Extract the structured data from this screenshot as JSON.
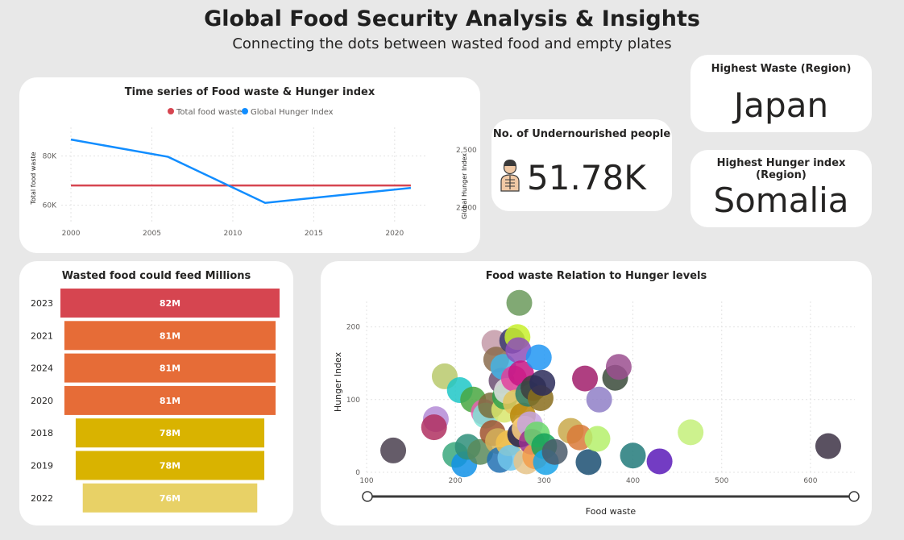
{
  "header": {
    "title": "Global Food Security Analysis & Insights",
    "subtitle": "Connecting the dots between wasted food and empty plates"
  },
  "kpis": {
    "highest_waste": {
      "label": "Highest Waste (Region)",
      "value": "Japan"
    },
    "highest_hunger": {
      "label": "Highest Hunger index (Region)",
      "value": "Somalia"
    },
    "undernourished": {
      "label": "No. of Undernourished people",
      "value": "51.78K",
      "icon": "person-skeleton-icon"
    }
  },
  "colors": {
    "food_waste": "#d64550",
    "hunger_index": "#118dff",
    "bar_2023": "#d64550",
    "bar_2021": "#e66c37",
    "bar_2018": "#d9b300",
    "bar_2022": "#e8d166"
  },
  "chart_data": [
    {
      "type": "line",
      "title": "Time series of Food waste & Hunger index",
      "legend": "top-center",
      "xlabel": "",
      "ylabel": "Total food waste",
      "y2label": "Global Hunger Index",
      "x_ticks": [
        2000,
        2005,
        2010,
        2015,
        2020
      ],
      "y_ticks": [
        {
          "value": 60000,
          "label": "60K"
        },
        {
          "value": 80000,
          "label": "80K"
        }
      ],
      "y2_ticks": [
        {
          "value": 2000,
          "label": "2,000"
        },
        {
          "value": 2500,
          "label": "2,500"
        }
      ],
      "xlim": [
        1999.4,
        2022
      ],
      "ylim": [
        53000,
        89000
      ],
      "y2lim": [
        1870,
        2640
      ],
      "series": [
        {
          "name": "Total food waste",
          "axis": "left",
          "x": [
            2000,
            2021
          ],
          "values": [
            68000,
            68000
          ]
        },
        {
          "name": "Global Hunger Index",
          "axis": "right",
          "x": [
            2000,
            2006,
            2012,
            2021
          ],
          "values": [
            2590,
            2440,
            2040,
            2170
          ]
        }
      ]
    },
    {
      "type": "bar",
      "orientation": "horizontal-funnel",
      "title": "Wasted food could feed Millions",
      "categories": [
        "2023",
        "2021",
        "2024",
        "2020",
        "2018",
        "2019",
        "2022"
      ],
      "values": [
        82,
        81,
        81,
        81,
        78,
        78,
        76
      ],
      "labels": [
        "82M",
        "81M",
        "81M",
        "81M",
        "78M",
        "78M",
        "76M"
      ]
    },
    {
      "type": "scatter",
      "title": "Food waste Relation to Hunger levels",
      "xlabel": "Food waste",
      "ylabel": "Hunger Index",
      "xlim": [
        100,
        650
      ],
      "ylim": [
        0,
        235
      ],
      "x_ticks": [
        100,
        200,
        300,
        400,
        500,
        600
      ],
      "y_ticks": [
        0,
        100,
        200
      ],
      "grid": true,
      "points": [
        {
          "x": 130,
          "y": 30,
          "c": "#4a3f4f"
        },
        {
          "x": 178,
          "y": 73,
          "c": "#b48bd6"
        },
        {
          "x": 176,
          "y": 62,
          "c": "#b03060"
        },
        {
          "x": 188,
          "y": 132,
          "c": "#b8c96c"
        },
        {
          "x": 205,
          "y": 113,
          "c": "#1fc7c7"
        },
        {
          "x": 200,
          "y": 24,
          "c": "#3aa87d"
        },
        {
          "x": 210,
          "y": 11,
          "c": "#1192e8"
        },
        {
          "x": 214,
          "y": 35,
          "c": "#2f8f7a"
        },
        {
          "x": 220,
          "y": 100,
          "c": "#49a741"
        },
        {
          "x": 228,
          "y": 28,
          "c": "#5a8a5a"
        },
        {
          "x": 232,
          "y": 83,
          "c": "#e85fb0"
        },
        {
          "x": 234,
          "y": 78,
          "c": "#7fe3d6"
        },
        {
          "x": 240,
          "y": 92,
          "c": "#7a6d3a"
        },
        {
          "x": 242,
          "y": 54,
          "c": "#a0522d"
        },
        {
          "x": 244,
          "y": 178,
          "c": "#c49aa8"
        },
        {
          "x": 246,
          "y": 155,
          "c": "#8b6c4e"
        },
        {
          "x": 248,
          "y": 43,
          "c": "#d4b15b"
        },
        {
          "x": 250,
          "y": 17,
          "c": "#2271b3"
        },
        {
          "x": 252,
          "y": 126,
          "c": "#6b4e71"
        },
        {
          "x": 254,
          "y": 145,
          "c": "#43b4e6"
        },
        {
          "x": 255,
          "y": 86,
          "c": "#d8e66c"
        },
        {
          "x": 256,
          "y": 104,
          "c": "#30a14e"
        },
        {
          "x": 258,
          "y": 112,
          "c": "#e0e0e0"
        },
        {
          "x": 260,
          "y": 40,
          "c": "#f2c14e"
        },
        {
          "x": 262,
          "y": 20,
          "c": "#71c7ec"
        },
        {
          "x": 264,
          "y": 181,
          "c": "#3b3b6d"
        },
        {
          "x": 266,
          "y": 129,
          "c": "#e23f9b"
        },
        {
          "x": 268,
          "y": 96,
          "c": "#e3c35b"
        },
        {
          "x": 270,
          "y": 186,
          "c": "#c8f02b"
        },
        {
          "x": 271,
          "y": 168,
          "c": "#8e4fb8"
        },
        {
          "x": 272,
          "y": 233,
          "c": "#6b9a5c"
        },
        {
          "x": 273,
          "y": 52,
          "c": "#1f1f4f"
        },
        {
          "x": 274,
          "y": 136,
          "c": "#c71585"
        },
        {
          "x": 276,
          "y": 78,
          "c": "#b8860b"
        },
        {
          "x": 278,
          "y": 60,
          "c": "#ffd27f"
        },
        {
          "x": 280,
          "y": 15,
          "c": "#e6c48a"
        },
        {
          "x": 282,
          "y": 108,
          "c": "#2e7d6b"
        },
        {
          "x": 284,
          "y": 66,
          "c": "#c5a3e0"
        },
        {
          "x": 286,
          "y": 42,
          "c": "#9b2f8f"
        },
        {
          "x": 288,
          "y": 116,
          "c": "#3d3d3d"
        },
        {
          "x": 290,
          "y": 22,
          "c": "#f29e4c"
        },
        {
          "x": 292,
          "y": 52,
          "c": "#68d86b"
        },
        {
          "x": 294,
          "y": 158,
          "c": "#2196f3"
        },
        {
          "x": 296,
          "y": 102,
          "c": "#8a6d1c"
        },
        {
          "x": 298,
          "y": 123,
          "c": "#2b2b5b"
        },
        {
          "x": 300,
          "y": 36,
          "c": "#14a35a"
        },
        {
          "x": 302,
          "y": 14,
          "c": "#1aa3e8"
        },
        {
          "x": 312,
          "y": 28,
          "c": "#4a5a6a"
        },
        {
          "x": 330,
          "y": 57,
          "c": "#c9a94b"
        },
        {
          "x": 340,
          "y": 48,
          "c": "#d97a3a"
        },
        {
          "x": 346,
          "y": 129,
          "c": "#a11d6b"
        },
        {
          "x": 350,
          "y": 14,
          "c": "#1b4f72"
        },
        {
          "x": 360,
          "y": 46,
          "c": "#b5f06b"
        },
        {
          "x": 362,
          "y": 100,
          "c": "#8f7fc7"
        },
        {
          "x": 380,
          "y": 130,
          "c": "#3a4a3a"
        },
        {
          "x": 384,
          "y": 145,
          "c": "#9b4f8f"
        },
        {
          "x": 400,
          "y": 23,
          "c": "#227a7a"
        },
        {
          "x": 430,
          "y": 15,
          "c": "#5a1ab8"
        },
        {
          "x": 465,
          "y": 55,
          "c": "#c4f07a"
        },
        {
          "x": 620,
          "y": 36,
          "c": "#3d3245"
        }
      ]
    }
  ]
}
